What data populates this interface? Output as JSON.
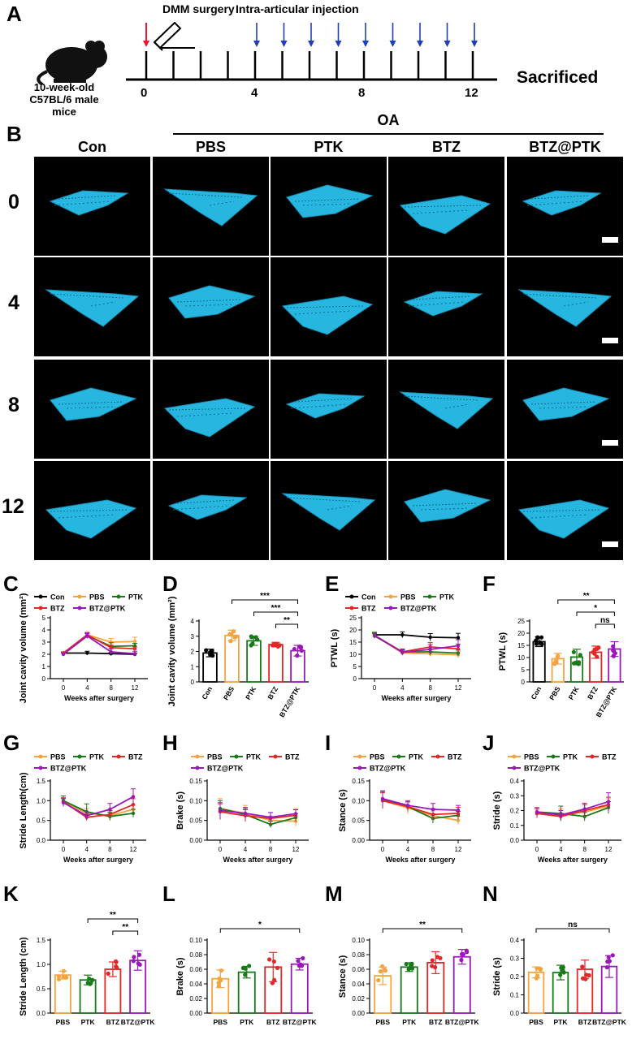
{
  "panel_letters": [
    "A",
    "B",
    "C",
    "D",
    "E",
    "F",
    "G",
    "H",
    "I",
    "J",
    "K",
    "L",
    "M",
    "N"
  ],
  "timeline": {
    "surgery_label": "DMM surgery",
    "injection_label": "Intra-articular injection",
    "mouse_line1": "10-week-old",
    "mouse_line2": "C57BL/6 male mice",
    "tick_labels": [
      "0",
      "4",
      "8",
      "12"
    ],
    "end_label": "Sacrificed",
    "colors": {
      "surgery": "#e8192c",
      "injection": "#1f3fb8"
    }
  },
  "imaging": {
    "oa_label": "OA",
    "groups": [
      "Con",
      "PBS",
      "PTK",
      "BTZ",
      "BTZ@PTK"
    ],
    "weeks": [
      "0",
      "4",
      "8",
      "12"
    ],
    "bone_color": "#27b6e0"
  },
  "colors": {
    "Con": "#000000",
    "PBS": "#f4a340",
    "PTK": "#1a7a1a",
    "BTZ": "#e32626",
    "BTZ@PTK": "#9b18b8"
  },
  "chart_data": [
    {
      "panel": "C",
      "type": "line",
      "ylabel": "Joint cavity volume (mm²)",
      "xlabel": "Weeks after surgery",
      "x": [
        0,
        4,
        8,
        12
      ],
      "ylim": [
        0,
        5
      ],
      "yticks": [
        0,
        1,
        2,
        3,
        4,
        5
      ],
      "legend": [
        "Con",
        "PBS",
        "PTK",
        "BTZ",
        "BTZ@PTK"
      ],
      "series": [
        {
          "name": "Con",
          "values": [
            2.1,
            2.1,
            2.05,
            2.0
          ],
          "err": [
            0.1,
            0.15,
            0.1,
            0.1
          ]
        },
        {
          "name": "PBS",
          "values": [
            2.0,
            3.6,
            3.0,
            3.05
          ],
          "err": [
            0.1,
            0.2,
            0.3,
            0.35
          ]
        },
        {
          "name": "PTK",
          "values": [
            2.05,
            3.55,
            2.65,
            2.7
          ],
          "err": [
            0.1,
            0.2,
            0.3,
            0.2
          ]
        },
        {
          "name": "BTZ",
          "values": [
            2.1,
            3.6,
            2.55,
            2.45
          ],
          "err": [
            0.1,
            0.2,
            0.2,
            0.15
          ]
        },
        {
          "name": "BTZ@PTK",
          "values": [
            2.0,
            3.5,
            2.2,
            2.05
          ],
          "err": [
            0.1,
            0.2,
            0.25,
            0.2
          ]
        }
      ]
    },
    {
      "panel": "D",
      "type": "bar",
      "ylabel": "Joint cavity volume (mm²)",
      "categories": [
        "Con",
        "PBS",
        "PTK",
        "BTZ",
        "BTZ@PTK"
      ],
      "ylim": [
        0,
        4
      ],
      "yticks": [
        0,
        1,
        2,
        3,
        4
      ],
      "values": [
        1.9,
        3.05,
        2.7,
        2.45,
        2.05
      ],
      "err": [
        0.25,
        0.35,
        0.3,
        0.15,
        0.35
      ],
      "sig": [
        {
          "from": "PBS",
          "to": "BTZ@PTK",
          "label": "***"
        },
        {
          "from": "PTK",
          "to": "BTZ@PTK",
          "label": "***"
        },
        {
          "from": "BTZ",
          "to": "BTZ@PTK",
          "label": "**"
        }
      ]
    },
    {
      "panel": "E",
      "type": "line",
      "ylabel": "PTWL (s)",
      "xlabel": "Weeks after surgery",
      "x": [
        0,
        4,
        8,
        12
      ],
      "ylim": [
        0,
        25
      ],
      "yticks": [
        0,
        5,
        10,
        15,
        20,
        25
      ],
      "legend": [
        "Con",
        "PBS",
        "PTK",
        "BTZ",
        "BTZ@PTK"
      ],
      "series": [
        {
          "name": "Con",
          "values": [
            18.0,
            18.0,
            17.0,
            16.8
          ],
          "err": [
            1.0,
            1.2,
            1.5,
            1.8
          ]
        },
        {
          "name": "PBS",
          "values": [
            17.8,
            10.5,
            10.2,
            9.8
          ],
          "err": [
            1.0,
            1.0,
            1.0,
            1.2
          ]
        },
        {
          "name": "PTK",
          "values": [
            17.5,
            11.0,
            11.0,
            10.5
          ],
          "err": [
            1.0,
            1.0,
            1.2,
            1.2
          ]
        },
        {
          "name": "BTZ",
          "values": [
            17.8,
            11.0,
            13.0,
            12.2
          ],
          "err": [
            1.0,
            1.2,
            1.8,
            2.0
          ]
        },
        {
          "name": "BTZ@PTK",
          "values": [
            17.8,
            10.8,
            12.0,
            13.5
          ],
          "err": [
            1.0,
            1.0,
            2.0,
            2.5
          ]
        }
      ]
    },
    {
      "panel": "F",
      "type": "bar",
      "ylabel": "PTWL (s)",
      "categories": [
        "Con",
        "PBS",
        "PTK",
        "BTZ",
        "BTZ@PTK"
      ],
      "ylim": [
        0,
        25
      ],
      "yticks": [
        0,
        5,
        10,
        15,
        20,
        25
      ],
      "values": [
        16.5,
        9.5,
        10.2,
        12.2,
        13.5
      ],
      "err": [
        2.0,
        2.2,
        3.2,
        2.5,
        3.0
      ],
      "sig": [
        {
          "from": "PBS",
          "to": "BTZ@PTK",
          "label": "**"
        },
        {
          "from": "PTK",
          "to": "BTZ@PTK",
          "label": "*"
        },
        {
          "from": "BTZ",
          "to": "BTZ@PTK",
          "label": "ns"
        }
      ]
    },
    {
      "panel": "G",
      "type": "line",
      "ylabel": "Stride Length(cm)",
      "xlabel": "Weeks after surgery",
      "x": [
        0,
        4,
        8,
        12
      ],
      "ylim": [
        0,
        1.5
      ],
      "yticks": [
        0.0,
        0.5,
        1.0,
        1.5
      ],
      "legend": [
        "PBS",
        "PTK",
        "BTZ",
        "BTZ@PTK"
      ],
      "series": [
        {
          "name": "PBS",
          "values": [
            0.98,
            0.68,
            0.62,
            0.78
          ],
          "err": [
            0.1,
            0.12,
            0.1,
            0.12
          ]
        },
        {
          "name": "PTK",
          "values": [
            1.0,
            0.72,
            0.6,
            0.68
          ],
          "err": [
            0.12,
            0.2,
            0.1,
            0.1
          ]
        },
        {
          "name": "BTZ",
          "values": [
            0.97,
            0.58,
            0.65,
            0.9
          ],
          "err": [
            0.1,
            0.08,
            0.1,
            0.15
          ]
        },
        {
          "name": "BTZ@PTK",
          "values": [
            0.95,
            0.62,
            0.78,
            1.1
          ],
          "err": [
            0.1,
            0.1,
            0.15,
            0.2
          ]
        }
      ]
    },
    {
      "panel": "H",
      "type": "line",
      "ylabel": "Brake (s)",
      "xlabel": "Weeks after surgery",
      "x": [
        0,
        4,
        8,
        12
      ],
      "ylim": [
        0,
        0.15
      ],
      "yticks": [
        0.0,
        0.05,
        0.1,
        0.15
      ],
      "legend": [
        "PBS",
        "PTK",
        "BTZ",
        "BTZ@PTK"
      ],
      "series": [
        {
          "name": "PBS",
          "values": [
            0.08,
            0.068,
            0.05,
            0.048
          ],
          "err": [
            0.025,
            0.02,
            0.01,
            0.012
          ]
        },
        {
          "name": "PTK",
          "values": [
            0.08,
            0.065,
            0.04,
            0.057
          ],
          "err": [
            0.02,
            0.015,
            0.008,
            0.01
          ]
        },
        {
          "name": "BTZ",
          "values": [
            0.072,
            0.062,
            0.055,
            0.063
          ],
          "err": [
            0.02,
            0.015,
            0.015,
            0.015
          ]
        },
        {
          "name": "BTZ@PTK",
          "values": [
            0.075,
            0.068,
            0.058,
            0.067
          ],
          "err": [
            0.02,
            0.015,
            0.012,
            0.01
          ]
        }
      ]
    },
    {
      "panel": "I",
      "type": "line",
      "ylabel": "Stance (s)",
      "xlabel": "Weeks after surgery",
      "x": [
        0,
        4,
        8,
        12
      ],
      "ylim": [
        0,
        0.15
      ],
      "yticks": [
        0.0,
        0.05,
        0.1,
        0.15
      ],
      "legend": [
        "PBS",
        "PTK",
        "BTZ",
        "BTZ@PTK"
      ],
      "series": [
        {
          "name": "PBS",
          "values": [
            0.1,
            0.082,
            0.062,
            0.05
          ],
          "err": [
            0.02,
            0.015,
            0.012,
            0.01
          ]
        },
        {
          "name": "PTK",
          "values": [
            0.103,
            0.085,
            0.055,
            0.063
          ],
          "err": [
            0.02,
            0.012,
            0.012,
            0.01
          ]
        },
        {
          "name": "BTZ",
          "values": [
            0.1,
            0.085,
            0.065,
            0.068
          ],
          "err": [
            0.02,
            0.012,
            0.015,
            0.015
          ]
        },
        {
          "name": "BTZ@PTK",
          "values": [
            0.105,
            0.088,
            0.078,
            0.076
          ],
          "err": [
            0.02,
            0.012,
            0.015,
            0.012
          ]
        }
      ]
    },
    {
      "panel": "J",
      "type": "line",
      "ylabel": "Stride (s)",
      "xlabel": "Weeks after surgery",
      "x": [
        0,
        4,
        8,
        12
      ],
      "ylim": [
        0,
        0.4
      ],
      "yticks": [
        0.0,
        0.1,
        0.2,
        0.3,
        0.4
      ],
      "legend": [
        "PBS",
        "PTK",
        "BTZ",
        "BTZ@PTK"
      ],
      "series": [
        {
          "name": "PBS",
          "values": [
            0.19,
            0.17,
            0.19,
            0.23
          ],
          "err": [
            0.03,
            0.04,
            0.05,
            0.05
          ]
        },
        {
          "name": "PTK",
          "values": [
            0.19,
            0.18,
            0.16,
            0.22
          ],
          "err": [
            0.03,
            0.05,
            0.03,
            0.04
          ]
        },
        {
          "name": "BTZ",
          "values": [
            0.18,
            0.16,
            0.2,
            0.24
          ],
          "err": [
            0.03,
            0.02,
            0.04,
            0.05
          ]
        },
        {
          "name": "BTZ@PTK",
          "values": [
            0.19,
            0.17,
            0.21,
            0.26
          ],
          "err": [
            0.03,
            0.03,
            0.04,
            0.06
          ]
        }
      ]
    },
    {
      "panel": "K",
      "type": "bar",
      "ylabel": "Stride Length (cm)",
      "categories": [
        "PBS",
        "PTK",
        "BTZ",
        "BTZ@PTK"
      ],
      "ylim": [
        0,
        1.5
      ],
      "yticks": [
        0.0,
        0.5,
        1.0,
        1.5
      ],
      "values": [
        0.78,
        0.68,
        0.9,
        1.08
      ],
      "err": [
        0.08,
        0.1,
        0.15,
        0.2
      ],
      "sig": [
        {
          "from": "PTK",
          "to": "BTZ@PTK",
          "label": "**"
        },
        {
          "from": "BTZ",
          "to": "BTZ@PTK",
          "label": "**"
        }
      ]
    },
    {
      "panel": "L",
      "type": "bar",
      "ylabel": "Brake (s)",
      "categories": [
        "PBS",
        "PTK",
        "BTZ",
        "BTZ@PTK"
      ],
      "ylim": [
        0,
        0.1
      ],
      "yticks": [
        0.0,
        0.02,
        0.04,
        0.06,
        0.08,
        0.1
      ],
      "values": [
        0.047,
        0.056,
        0.063,
        0.067
      ],
      "err": [
        0.012,
        0.008,
        0.02,
        0.008
      ],
      "sig": [
        {
          "from": "PBS",
          "to": "BTZ@PTK",
          "label": "*"
        }
      ]
    },
    {
      "panel": "M",
      "type": "bar",
      "ylabel": "Stance (s)",
      "categories": [
        "PBS",
        "PTK",
        "BTZ",
        "BTZ@PTK"
      ],
      "ylim": [
        0,
        0.1
      ],
      "yticks": [
        0.0,
        0.02,
        0.04,
        0.06,
        0.08,
        0.1
      ],
      "values": [
        0.051,
        0.063,
        0.069,
        0.077
      ],
      "err": [
        0.012,
        0.006,
        0.015,
        0.01
      ],
      "sig": [
        {
          "from": "PBS",
          "to": "BTZ@PTK",
          "label": "**"
        }
      ]
    },
    {
      "panel": "N",
      "type": "bar",
      "ylabel": "Stride (s)",
      "categories": [
        "PBS",
        "PTK",
        "BTZ",
        "BTZ@PTK"
      ],
      "ylim": [
        0,
        0.4
      ],
      "yticks": [
        0.0,
        0.1,
        0.2,
        0.3,
        0.4
      ],
      "values": [
        0.223,
        0.222,
        0.24,
        0.255
      ],
      "err": [
        0.03,
        0.04,
        0.05,
        0.06
      ],
      "sig": [
        {
          "from": "PBS",
          "to": "BTZ@PTK",
          "label": "ns"
        }
      ]
    }
  ]
}
